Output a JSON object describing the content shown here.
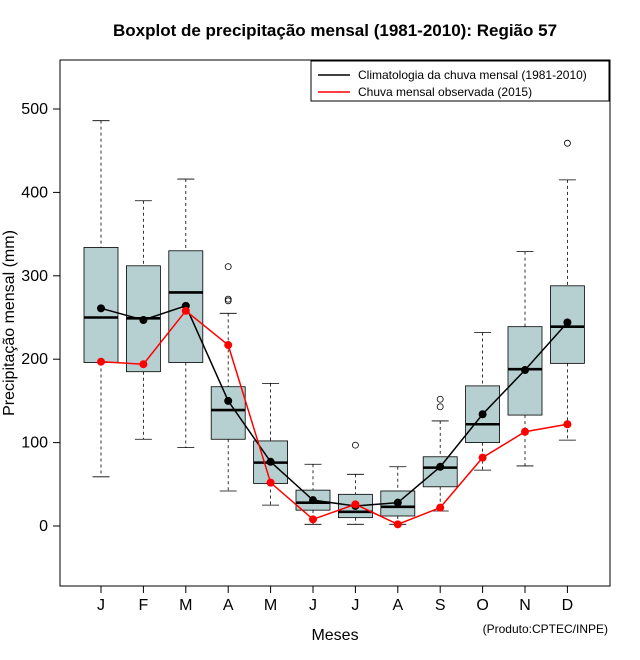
{
  "chart_data": {
    "type": "boxplot",
    "title": "Boxplot de precipitação mensal (1981-2010): Região 57",
    "xlabel": "Meses",
    "ylabel": "Precipitação mensal (mm)",
    "ylim": [
      -70,
      570
    ],
    "yticks": [
      0,
      100,
      200,
      300,
      400,
      500
    ],
    "categories": [
      "J",
      "F",
      "M",
      "A",
      "M",
      "J",
      "J",
      "A",
      "S",
      "O",
      "N",
      "D"
    ],
    "boxes": [
      {
        "whisker_low": 59,
        "q1": 196,
        "median": 250,
        "q3": 334,
        "whisker_high": 486,
        "outliers": []
      },
      {
        "whisker_low": 104,
        "q1": 185,
        "median": 249,
        "q3": 312,
        "whisker_high": 390,
        "outliers": []
      },
      {
        "whisker_low": 94,
        "q1": 196,
        "median": 280,
        "q3": 330,
        "whisker_high": 416,
        "outliers": []
      },
      {
        "whisker_low": 42,
        "q1": 104,
        "median": 139,
        "q3": 167,
        "whisker_high": 255,
        "outliers": [
          272,
          270,
          311
        ]
      },
      {
        "whisker_low": 25,
        "q1": 51,
        "median": 76,
        "q3": 102,
        "whisker_high": 171,
        "outliers": []
      },
      {
        "whisker_low": 2,
        "q1": 19,
        "median": 28,
        "q3": 43,
        "whisker_high": 74,
        "outliers": []
      },
      {
        "whisker_low": 2,
        "q1": 10,
        "median": 17,
        "q3": 38,
        "whisker_high": 62,
        "outliers": [
          97
        ]
      },
      {
        "whisker_low": 2,
        "q1": 12,
        "median": 23,
        "q3": 42,
        "whisker_high": 71,
        "outliers": []
      },
      {
        "whisker_low": 18,
        "q1": 47,
        "median": 70,
        "q3": 83,
        "whisker_high": 126,
        "outliers": [
          143,
          152
        ]
      },
      {
        "whisker_low": 67,
        "q1": 100,
        "median": 122,
        "q3": 168,
        "whisker_high": 232,
        "outliers": []
      },
      {
        "whisker_low": 72,
        "q1": 133,
        "median": 188,
        "q3": 239,
        "whisker_high": 329,
        "outliers": []
      },
      {
        "whisker_low": 103,
        "q1": 195,
        "median": 239,
        "q3": 288,
        "whisker_high": 415,
        "outliers": [
          459
        ]
      }
    ],
    "series": [
      {
        "name": "Climatologia da chuva mensal (1981-2010)",
        "color": "#000000",
        "values": [
          261,
          247,
          264,
          150,
          77,
          31,
          24,
          28,
          71,
          134,
          187,
          244
        ]
      },
      {
        "name": "Chuva mensal observada (2015)",
        "color": "#ff0000",
        "values": [
          197,
          194,
          258,
          217,
          52,
          8,
          26,
          2,
          22,
          82,
          113,
          122
        ]
      }
    ],
    "legend_position": "top-right",
    "box_fill": "#b6cfd0",
    "credit": "(Produto:CPTEC/INPE)"
  }
}
